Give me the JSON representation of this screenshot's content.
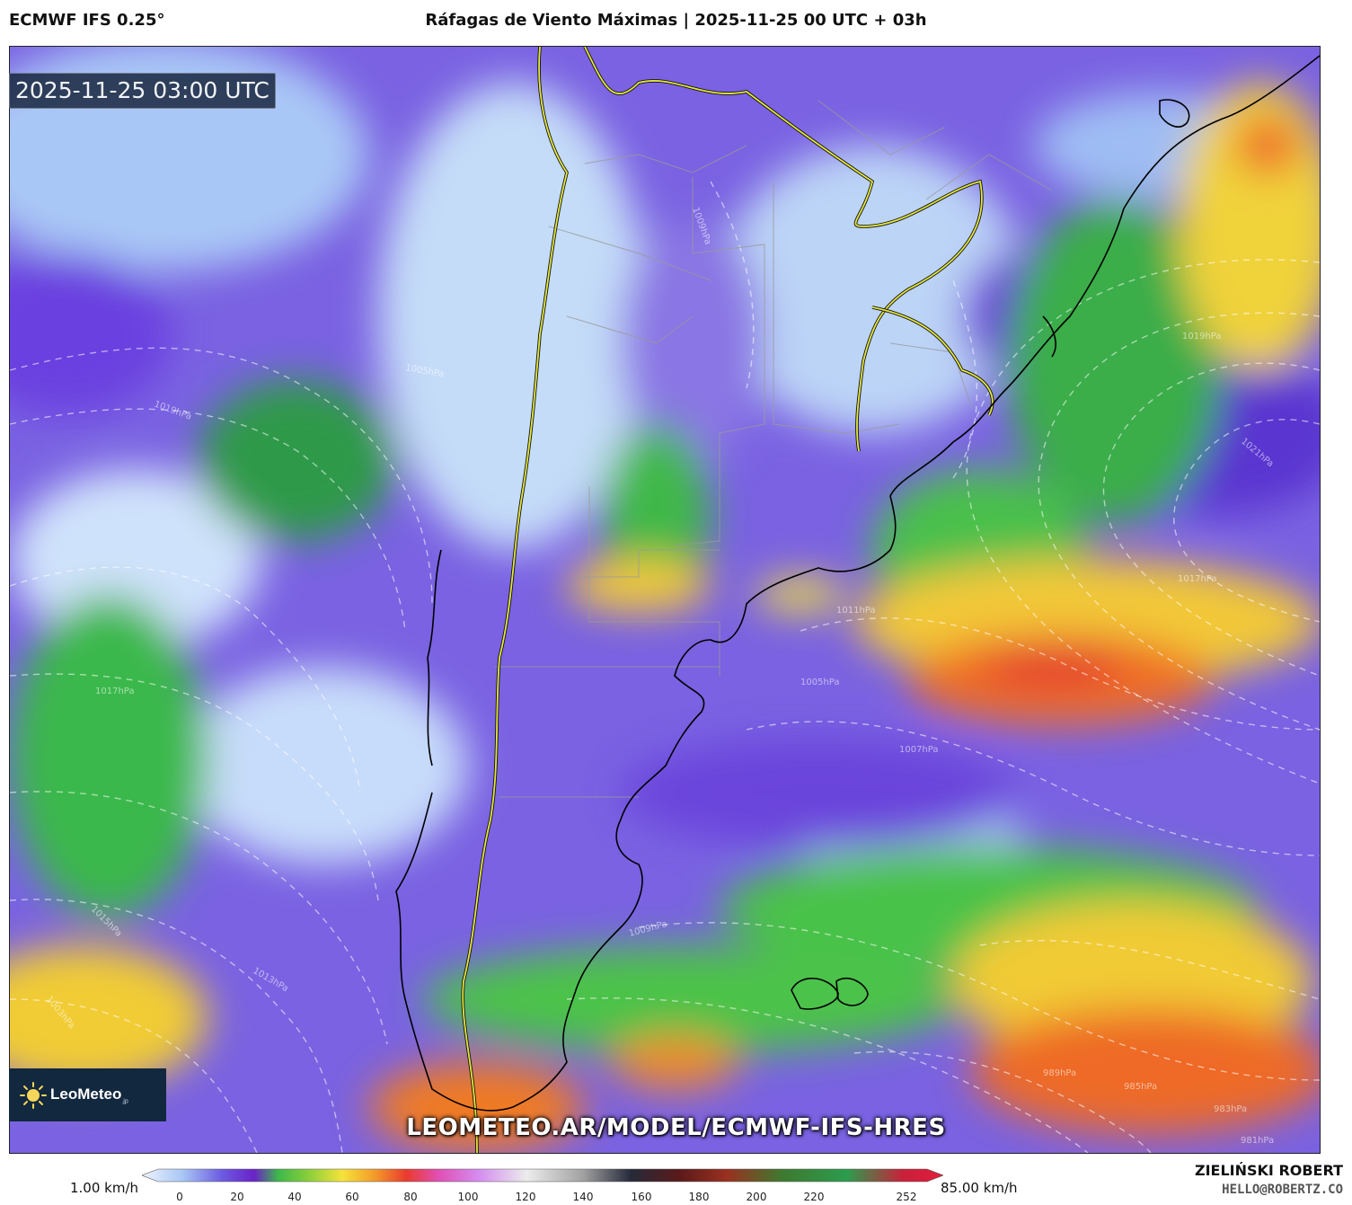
{
  "header": {
    "model": "ECMWF IFS 0.25°",
    "title": "Ráfagas de Viento Máximas | 2025-11-25 00 UTC + 03h"
  },
  "map": {
    "timestamp": "2025-11-25 03:00 UTC",
    "watermark": "LEOMETEO.AR/MODEL/ECMWF-IFS-HRES",
    "logo": {
      "name": "LeoMeteo",
      "suffix": ".jp"
    },
    "isobar_labels": [
      "1019hPa",
      "1017hPa",
      "1015hPa",
      "1013hPa",
      "1011hPa",
      "1009hPa",
      "1007hPa",
      "1005hPa",
      "1003hPa",
      "1021hPa",
      "1019hPa",
      "1017hPa",
      "989hPa",
      "985hPa",
      "983hPa",
      "981hPa",
      "1009hPa",
      "1005hPa"
    ],
    "colors": {
      "calm": "#b9d3f5",
      "light": "#6d55e0",
      "moderate": "#3fbf4a",
      "strong": "#f2d23c",
      "very_strong": "#ef7a24",
      "extreme": "#e43a2e",
      "borders_national": "#e6e83a",
      "coastline": "#000000"
    }
  },
  "legend": {
    "unit_min": "1.00 km/h",
    "unit_max": "85.00 km/h",
    "ticks": [
      "0",
      "20",
      "40",
      "60",
      "80",
      "100",
      "120",
      "140",
      "160",
      "180",
      "200",
      "220",
      "252"
    ]
  },
  "credits": {
    "author": "ZIELIŃSKI ROBERT",
    "contact": "HELLO@ROBERTZ.CO"
  }
}
